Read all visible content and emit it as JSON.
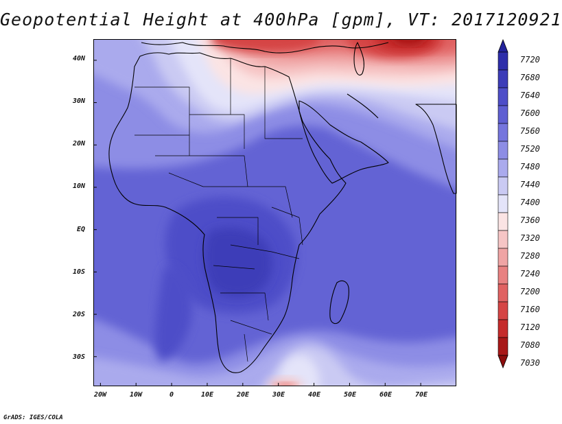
{
  "title": "Geopotential Height at 400hPa [gpm], VT: 2017120921",
  "y_axis": {
    "labels": [
      "40N",
      "30N",
      "20N",
      "10N",
      "EQ",
      "10S",
      "20S",
      "30S"
    ],
    "values": [
      40,
      30,
      20,
      10,
      0,
      -10,
      -20,
      -30
    ],
    "range": [
      -37,
      45
    ]
  },
  "x_axis": {
    "labels": [
      "20W",
      "10W",
      "0",
      "10E",
      "20E",
      "30E",
      "40E",
      "50E",
      "60E",
      "70E"
    ],
    "values": [
      -20,
      -10,
      0,
      10,
      20,
      30,
      40,
      50,
      60,
      70
    ],
    "range": [
      -22,
      80
    ]
  },
  "colorbar": {
    "labels": [
      "7720",
      "7680",
      "7640",
      "7600",
      "7560",
      "7520",
      "7480",
      "7440",
      "7400",
      "7360",
      "7320",
      "7280",
      "7240",
      "7200",
      "7160",
      "7120",
      "7080",
      "7030"
    ],
    "colors": [
      "#23239b",
      "#2e2eaa",
      "#3c3cb8",
      "#4e4ec8",
      "#5f5fd2",
      "#7575dd",
      "#8d8de5",
      "#aaaaed",
      "#cacaf3",
      "#e4e4f9",
      "#fbe4e4",
      "#f6c5c5",
      "#efa4a4",
      "#e88181",
      "#e06262",
      "#d54545",
      "#c52b2b",
      "#a81818",
      "#8c0d0d"
    ]
  },
  "credit": "GrADS: IGES/COLA"
}
